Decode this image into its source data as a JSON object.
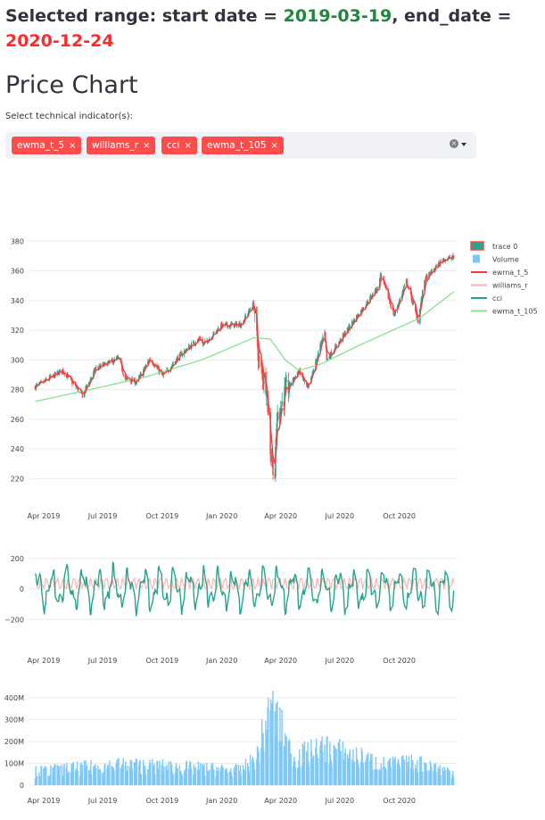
{
  "header": {
    "prefix": "Selected range: start date = ",
    "start_date": "2019-03-19",
    "mid": ", end_date = ",
    "end_date": "2020-12-24"
  },
  "section_title": "Price Chart",
  "indicator_select": {
    "label": "Select technical indicator(s):",
    "selected": [
      "ewma_t_5",
      "williams_r",
      "cci",
      "ewma_t_105"
    ],
    "remove_glyph": "×"
  },
  "colors": {
    "up": "#2aa38a",
    "down": "#ff4b4b",
    "ewma_t_5": "#ef3b3b",
    "williams_r": "#f9b3b3",
    "cci": "#29a38b",
    "ewma_t_105": "#86e28f",
    "volume": "#7ec8f7"
  },
  "chart_data": [
    {
      "type": "line",
      "title": "",
      "x_axis_type": "date",
      "x_ticks": [
        "Apr 2019",
        "Jul 2019",
        "Oct 2019",
        "Jan 2020",
        "Apr 2020",
        "Jul 2020",
        "Oct 2020"
      ],
      "x_range": [
        "2019-03-10",
        "2020-12-30"
      ],
      "ylim": [
        210,
        385
      ],
      "y_ticks": [
        220,
        240,
        260,
        280,
        300,
        320,
        340,
        360,
        380
      ],
      "legend_position": "right",
      "series": [
        {
          "name": "trace 0",
          "type": "candlestick",
          "keypoints": [
            [
              "2019-03-19",
              282
            ],
            [
              "2019-04-01",
              285
            ],
            [
              "2019-04-30",
              293
            ],
            [
              "2019-05-13",
              286
            ],
            [
              "2019-05-31",
              276
            ],
            [
              "2019-06-20",
              294
            ],
            [
              "2019-07-26",
              301
            ],
            [
              "2019-08-05",
              287
            ],
            [
              "2019-08-23",
              285
            ],
            [
              "2019-09-12",
              301
            ],
            [
              "2019-10-02",
              289
            ],
            [
              "2019-10-28",
              303
            ],
            [
              "2019-11-29",
              315
            ],
            [
              "2019-12-03",
              310
            ],
            [
              "2019-12-31",
              323
            ],
            [
              "2020-01-31",
              324
            ],
            [
              "2020-02-19",
              338
            ],
            [
              "2020-02-28",
              296
            ],
            [
              "2020-03-10",
              283
            ],
            [
              "2020-03-16",
              240
            ],
            [
              "2020-03-23",
              222
            ],
            [
              "2020-03-26",
              260
            ],
            [
              "2020-04-08",
              278
            ],
            [
              "2020-04-29",
              293
            ],
            [
              "2020-05-13",
              280
            ],
            [
              "2020-06-08",
              320
            ],
            [
              "2020-06-11",
              300
            ],
            [
              "2020-07-22",
              326
            ],
            [
              "2020-08-31",
              350
            ],
            [
              "2020-09-02",
              358
            ],
            [
              "2020-09-23",
              330
            ],
            [
              "2020-10-12",
              353
            ],
            [
              "2020-10-30",
              326
            ],
            [
              "2020-11-09",
              354
            ],
            [
              "2020-12-08",
              368
            ],
            [
              "2020-12-24",
              369
            ]
          ]
        },
        {
          "name": "Volume",
          "type": "bar"
        },
        {
          "name": "ewma_t_5",
          "type": "line"
        },
        {
          "name": "williams_r",
          "type": "line"
        },
        {
          "name": "cci",
          "type": "line"
        },
        {
          "name": "ewma_t_105",
          "type": "line",
          "keypoints": [
            [
              "2019-03-19",
              272
            ],
            [
              "2019-06-01",
              279
            ],
            [
              "2019-09-01",
              288
            ],
            [
              "2019-12-01",
              300
            ],
            [
              "2020-02-20",
              315
            ],
            [
              "2020-03-16",
              314
            ],
            [
              "2020-04-08",
              300
            ],
            [
              "2020-04-29",
              293
            ],
            [
              "2020-06-01",
              297
            ],
            [
              "2020-08-01",
              310
            ],
            [
              "2020-10-01",
              322
            ],
            [
              "2020-11-01",
              328
            ],
            [
              "2020-12-24",
              346
            ]
          ]
        }
      ]
    },
    {
      "type": "line",
      "title": "",
      "ylim": [
        -320,
        240
      ],
      "y_ticks": [
        -200,
        0,
        200
      ],
      "x_ticks": [
        "Apr 2019",
        "Jul 2019",
        "Oct 2019",
        "Jan 2020",
        "Apr 2020",
        "Jul 2020",
        "Oct 2020"
      ],
      "series": [
        {
          "name": "cci",
          "type": "oscillator",
          "amplitude": 180
        },
        {
          "name": "williams_r",
          "type": "oscillator",
          "amplitude": 60
        }
      ]
    },
    {
      "type": "bar",
      "title": "",
      "ylim": [
        0,
        420000000
      ],
      "y_ticks": [
        0,
        100000000,
        200000000,
        300000000,
        400000000
      ],
      "y_tick_labels": [
        "0",
        "100M",
        "200M",
        "300M",
        "400M"
      ],
      "x_ticks": [
        "Apr 2019",
        "Jul 2019",
        "Oct 2019",
        "Jan 2020",
        "Apr 2020",
        "Jul 2020",
        "Oct 2020"
      ],
      "series": [
        {
          "name": "Volume",
          "typical": 70000000,
          "keypoints": [
            [
              "2019-03-19",
              75000000
            ],
            [
              "2019-08-05",
              110000000
            ],
            [
              "2020-01-31",
              80000000
            ],
            [
              "2020-02-24",
              150000000
            ],
            [
              "2020-03-09",
              330000000
            ],
            [
              "2020-03-16",
              390000000
            ],
            [
              "2020-03-23",
              380000000
            ],
            [
              "2020-04-20",
              150000000
            ],
            [
              "2020-06-11",
              200000000
            ],
            [
              "2020-09-08",
              110000000
            ],
            [
              "2020-10-30",
              120000000
            ],
            [
              "2020-12-24",
              70000000
            ]
          ]
        }
      ]
    }
  ]
}
